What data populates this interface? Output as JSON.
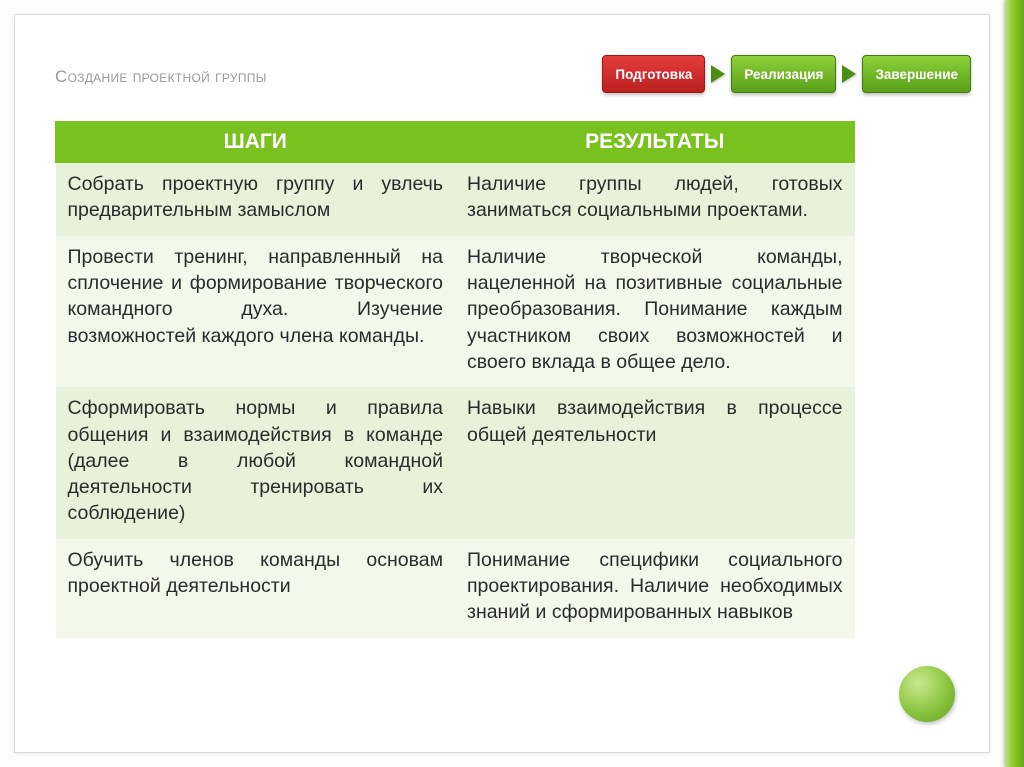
{
  "slide": {
    "title": "Создание проектной группы"
  },
  "stages": {
    "s1": "Подготовка",
    "s2": "Реализация",
    "s3": "Завершение",
    "active_color": "#d12b2b",
    "inactive_color": "#74b61d"
  },
  "table": {
    "header_bg": "#79c11f",
    "row_alt_a": "#e8f2da",
    "row_alt_b": "#f3f8ea",
    "col1": "ШАГИ",
    "col2": "РЕЗУЛЬТАТЫ",
    "rows": [
      {
        "step": "Собрать проектную группу и увлечь предварительным замыслом",
        "result": "Наличие группы людей, готовых заниматься социальными проектами."
      },
      {
        "step": "Провести тренинг, направленный на сплочение и формирование творческого командного духа. Изучение возможностей каждого члена команды.",
        "result": "Наличие творческой команды, нацеленной на позитивные социальные преобразования. Понимание каждым участником своих возможностей и своего вклада в общее дело."
      },
      {
        "step": "Сформировать нормы и правила общения и взаимодействия в команде (далее в любой командной деятельности тренировать их соблюдение)",
        "result": "Навыки взаимодействия в процессе общей деятельности"
      },
      {
        "step": "Обучить членов команды основам проектной деятельности",
        "result": "Понимание специфики социального проектирования. Наличие необходимых знаний и сформированных навыков"
      }
    ]
  },
  "decoration": {
    "accent_hex": "#8bc53f"
  }
}
